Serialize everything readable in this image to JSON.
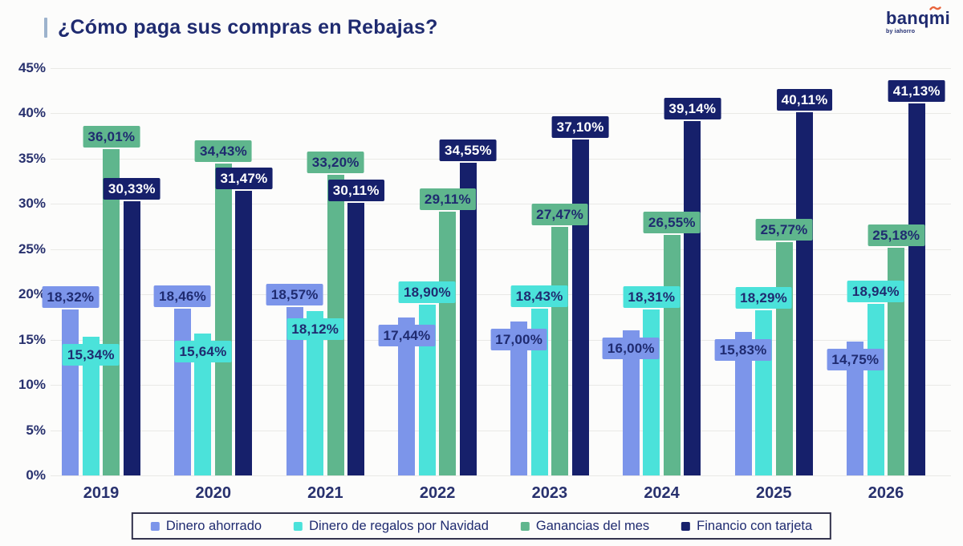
{
  "header": {
    "title": "¿Cómo paga sus compras en Rebajas?"
  },
  "logo": {
    "text": "banqmi",
    "tagline": "by iahorro",
    "accent_color": "#e8643c",
    "text_color": "#1f2b70"
  },
  "colors": {
    "axis_text": "#28316e",
    "label_text_dark": "#1f2b70",
    "label_text_light": "#ffffff",
    "gridline": "#e9e9e6",
    "background": "#fcfcfb"
  },
  "chart_data": {
    "type": "bar",
    "title": "¿Cómo paga sus compras en Rebajas?",
    "categories": [
      "2019",
      "2020",
      "2021",
      "2022",
      "2023",
      "2024",
      "2025",
      "2026"
    ],
    "series": [
      {
        "name": "Dinero ahorrado",
        "color": "#7c95ea",
        "label_text_color": "#1f2b70",
        "values": [
          18.32,
          18.46,
          18.57,
          17.44,
          17.0,
          16.0,
          15.83,
          14.75
        ],
        "display_labels": [
          "18,32%",
          "18,46%",
          "18,57%",
          "17,44%",
          "17,00%",
          "16,00%",
          "15,83%",
          "14,75%"
        ]
      },
      {
        "name": "Dinero de regalos por Navidad",
        "color": "#4be2da",
        "label_text_color": "#1f2b70",
        "values": [
          15.34,
          15.64,
          18.12,
          18.9,
          18.43,
          18.31,
          18.29,
          18.94
        ],
        "display_labels": [
          "15,34%",
          "15,64%",
          "18,12%",
          "18,90%",
          "18,43%",
          "18,31%",
          "18,29%",
          "18,94%"
        ]
      },
      {
        "name": "Ganancias del mes",
        "color": "#5fb68d",
        "label_text_color": "#1f2b70",
        "values": [
          36.01,
          34.43,
          33.2,
          29.11,
          27.47,
          26.55,
          25.77,
          25.18
        ],
        "display_labels": [
          "36,01%",
          "34,43%",
          "33,20%",
          "29,11%",
          "27,47%",
          "26,55%",
          "25,77%",
          "25,18%"
        ]
      },
      {
        "name": "Financio con tarjeta",
        "color": "#16206b",
        "label_text_color": "#ffffff",
        "values": [
          30.33,
          31.47,
          30.11,
          34.55,
          37.1,
          39.14,
          40.11,
          41.13
        ],
        "display_labels": [
          "30,33%",
          "31,47%",
          "30,11%",
          "34,55%",
          "37,10%",
          "39,14%",
          "40,11%",
          "41,13%"
        ]
      }
    ],
    "ylim": [
      0,
      45
    ],
    "ytick_step": 5,
    "ytick_labels": [
      "0%",
      "5%",
      "10%",
      "15%",
      "20%",
      "25%",
      "30%",
      "35%",
      "40%",
      "45%"
    ],
    "grid": "horizontal gridlines only, no vertical",
    "legend_position": "bottom",
    "value_format": "comma-decimal percent, labels shown on colored boxes above each bar"
  }
}
